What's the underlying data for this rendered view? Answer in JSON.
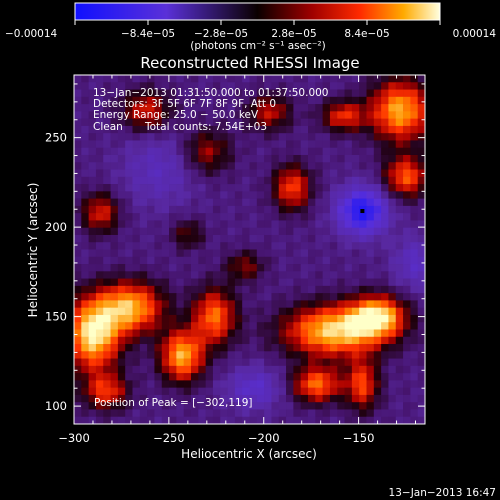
{
  "chart_data": {
    "type": "heatmap",
    "title": "Reconstructed RHESSI Image",
    "xlabel": "Heliocentric X (arcsec)",
    "ylabel": "Heliocentric Y (arcsec)",
    "xlim": [
      -300,
      -115
    ],
    "ylim": [
      90,
      285
    ],
    "x_ticks": [
      -300,
      -250,
      -200,
      -150
    ],
    "x_tick_labels": [
      "−300",
      "−250",
      "−200",
      "−150"
    ],
    "y_ticks": [
      100,
      150,
      200,
      250
    ],
    "y_tick_labels": [
      "100",
      "150",
      "200",
      "250"
    ],
    "colorbar": {
      "range": [
        -0.00014,
        0.00014
      ],
      "ticks": [
        -0.00014,
        -8.4e-05,
        -2.8e-05,
        2.8e-05,
        8.4e-05,
        0.00014
      ],
      "tick_labels": [
        "−0.00014",
        "−8.4e−05",
        "−2.8e−05",
        "2.8e−05",
        "8.4e−05",
        "0.00014"
      ],
      "unit_label": "(photons cm⁻² s⁻¹ asec⁻²)"
    },
    "annotations": [
      "13−Jan−2013 01:31:50.000 to 01:37:50.000",
      "Detectors: 3F 5F 6F 7F 8F 9F, Att 0",
      "Energy Range: 25.0 − 50.0 keV",
      "Clean",
      "Total counts: 7.54E+03"
    ],
    "peak_label": "Position of Peak = [−302,119]",
    "peak_position": [
      -302,
      119
    ],
    "min_position": [
      -148,
      209
    ],
    "grid": false,
    "blobs": [
      {
        "x": -290,
        "y": 140,
        "sx": 10,
        "sy": 14,
        "a": 1.0
      },
      {
        "x": -270,
        "y": 155,
        "sx": 12,
        "sy": 10,
        "a": 0.85
      },
      {
        "x": -243,
        "y": 128,
        "sx": 8,
        "sy": 10,
        "a": 0.85
      },
      {
        "x": -226,
        "y": 150,
        "sx": 8,
        "sy": 11,
        "a": 0.7
      },
      {
        "x": -283,
        "y": 108,
        "sx": 8,
        "sy": 7,
        "a": 0.55
      },
      {
        "x": -163,
        "y": 142,
        "sx": 18,
        "sy": 10,
        "a": 0.95
      },
      {
        "x": -140,
        "y": 150,
        "sx": 10,
        "sy": 8,
        "a": 0.9
      },
      {
        "x": -172,
        "y": 112,
        "sx": 9,
        "sy": 7,
        "a": 0.7
      },
      {
        "x": -148,
        "y": 112,
        "sx": 6,
        "sy": 10,
        "a": 0.6
      },
      {
        "x": -128,
        "y": 265,
        "sx": 11,
        "sy": 12,
        "a": 0.85
      },
      {
        "x": -125,
        "y": 228,
        "sx": 8,
        "sy": 8,
        "a": 0.65
      },
      {
        "x": -158,
        "y": 262,
        "sx": 8,
        "sy": 6,
        "a": 0.55
      },
      {
        "x": -185,
        "y": 222,
        "sx": 7,
        "sy": 9,
        "a": 0.6
      },
      {
        "x": -197,
        "y": 264,
        "sx": 8,
        "sy": 7,
        "a": 0.45
      },
      {
        "x": -286,
        "y": 208,
        "sx": 7,
        "sy": 8,
        "a": 0.5
      },
      {
        "x": -262,
        "y": 265,
        "sx": 9,
        "sy": 8,
        "a": 0.5
      },
      {
        "x": -230,
        "y": 242,
        "sx": 9,
        "sy": 9,
        "a": 0.4
      },
      {
        "x": -210,
        "y": 178,
        "sx": 7,
        "sy": 6,
        "a": 0.35
      },
      {
        "x": -240,
        "y": 196,
        "sx": 6,
        "sy": 6,
        "a": 0.3
      },
      {
        "x": -148,
        "y": 209,
        "sx": 9,
        "sy": 9,
        "a": -0.8
      },
      {
        "x": -120,
        "y": 180,
        "sx": 8,
        "sy": 10,
        "a": -0.3
      },
      {
        "x": -205,
        "y": 110,
        "sx": 10,
        "sy": 8,
        "a": -0.35
      },
      {
        "x": -255,
        "y": 232,
        "sx": 14,
        "sy": 14,
        "a": -0.25
      }
    ]
  },
  "timestamp": "13−Jan−2013 16:47"
}
